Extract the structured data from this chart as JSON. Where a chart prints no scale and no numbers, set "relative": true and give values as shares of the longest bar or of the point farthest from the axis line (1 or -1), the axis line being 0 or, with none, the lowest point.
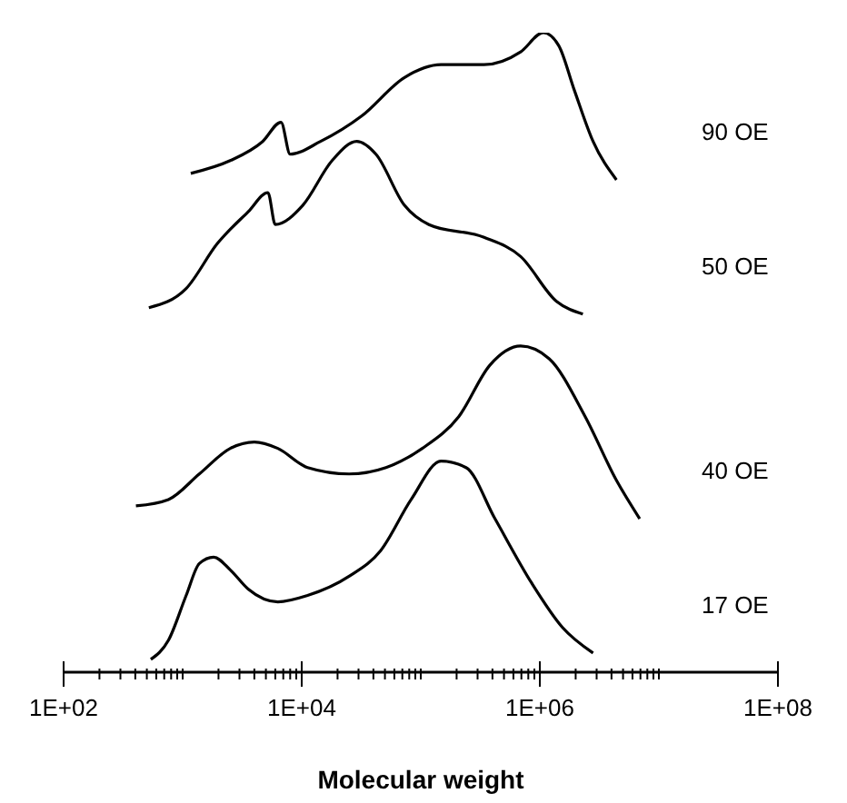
{
  "chart_data": {
    "type": "line",
    "relative": true,
    "xlabel": "Molecular weight",
    "log": "x",
    "marker": "none",
    "line_style": "solid",
    "xlim": [
      100,
      100000000
    ],
    "xticks": [
      {
        "value": 100,
        "label": "1E+02"
      },
      {
        "value": 200,
        "label": null
      },
      {
        "value": 300,
        "label": null
      },
      {
        "value": 400,
        "label": null
      },
      {
        "value": 500,
        "label": null
      },
      {
        "value": 600,
        "label": null
      },
      {
        "value": 700,
        "label": null
      },
      {
        "value": 800,
        "label": null
      },
      {
        "value": 900,
        "label": null
      },
      {
        "value": 1000,
        "label": null
      },
      {
        "value": 2000,
        "label": null
      },
      {
        "value": 3000,
        "label": null
      },
      {
        "value": 4000,
        "label": null
      },
      {
        "value": 5000,
        "label": null
      },
      {
        "value": 6000,
        "label": null
      },
      {
        "value": 7000,
        "label": null
      },
      {
        "value": 8000,
        "label": null
      },
      {
        "value": 9000,
        "label": null
      },
      {
        "value": 10000,
        "label": "1E+04"
      },
      {
        "value": 20000,
        "label": null
      },
      {
        "value": 30000,
        "label": null
      },
      {
        "value": 40000,
        "label": null
      },
      {
        "value": 50000,
        "label": null
      },
      {
        "value": 60000,
        "label": null
      },
      {
        "value": 70000,
        "label": null
      },
      {
        "value": 80000,
        "label": null
      },
      {
        "value": 90000,
        "label": null
      },
      {
        "value": 100000,
        "label": null
      },
      {
        "value": 200000,
        "label": null
      },
      {
        "value": 300000,
        "label": null
      },
      {
        "value": 400000,
        "label": null
      },
      {
        "value": 500000,
        "label": null
      },
      {
        "value": 600000,
        "label": null
      },
      {
        "value": 700000,
        "label": null
      },
      {
        "value": 800000,
        "label": null
      },
      {
        "value": 900000,
        "label": null
      },
      {
        "value": 1000000,
        "label": "1E+06"
      },
      {
        "value": 2000000,
        "label": null
      },
      {
        "value": 3000000,
        "label": null
      },
      {
        "value": 4000000,
        "label": null
      },
      {
        "value": 5000000,
        "label": null
      },
      {
        "value": 6000000,
        "label": null
      },
      {
        "value": 7000000,
        "label": null
      },
      {
        "value": 8000000,
        "label": null
      },
      {
        "value": 9000000,
        "label": null
      },
      {
        "value": 10000000,
        "label": null
      },
      {
        "value": 100000000,
        "label": "1E+08"
      }
    ],
    "series": [
      {
        "name": "90 OE",
        "color": "#000000",
        "x": [
          1170,
          2510,
          4700,
          6700,
          8000,
          14400,
          32000,
          73000,
          148000,
          340000,
          690000,
          1070000,
          1440000,
          1950000,
          2800000,
          4400000
        ],
        "values": [
          0.78,
          0.8,
          0.83,
          0.86,
          0.81,
          0.83,
          0.87,
          0.93,
          0.95,
          0.95,
          0.97,
          1,
          0.98,
          0.91,
          0.83,
          0.77
        ]
      },
      {
        "name": "50 OE",
        "color": "#000000",
        "x": [
          520,
          1070,
          1950,
          3550,
          5200,
          6000,
          10200,
          18000,
          29000,
          42000,
          73000,
          117000,
          340000,
          690000,
          1380000,
          2300000
        ],
        "values": [
          0.57,
          0.6,
          0.67,
          0.72,
          0.75,
          0.7,
          0.73,
          0.8,
          0.83,
          0.81,
          0.73,
          0.7,
          0.68,
          0.65,
          0.58,
          0.56
        ]
      },
      {
        "name": "40 OE",
        "color": "#000000",
        "x": [
          405,
          760,
          1380,
          2510,
          4000,
          6300,
          11200,
          25000,
          51000,
          103000,
          209000,
          380000,
          690000,
          1200000,
          2400000,
          4400000,
          6900000
        ],
        "values": [
          0.26,
          0.27,
          0.31,
          0.35,
          0.36,
          0.35,
          0.32,
          0.31,
          0.32,
          0.35,
          0.4,
          0.48,
          0.51,
          0.49,
          0.4,
          0.3,
          0.24
        ]
      },
      {
        "name": "17 OE",
        "color": "#000000",
        "x": [
          540,
          760,
          1070,
          1380,
          1820,
          2510,
          3550,
          6300,
          11200,
          25000,
          46000,
          83000,
          148000,
          240000,
          420000,
          850000,
          1550000,
          2800000
        ],
        "values": [
          0.02,
          0.05,
          0.12,
          0.17,
          0.18,
          0.16,
          0.13,
          0.11,
          0.12,
          0.15,
          0.19,
          0.27,
          0.33,
          0.32,
          0.24,
          0.14,
          0.07,
          0.03
        ]
      }
    ]
  }
}
